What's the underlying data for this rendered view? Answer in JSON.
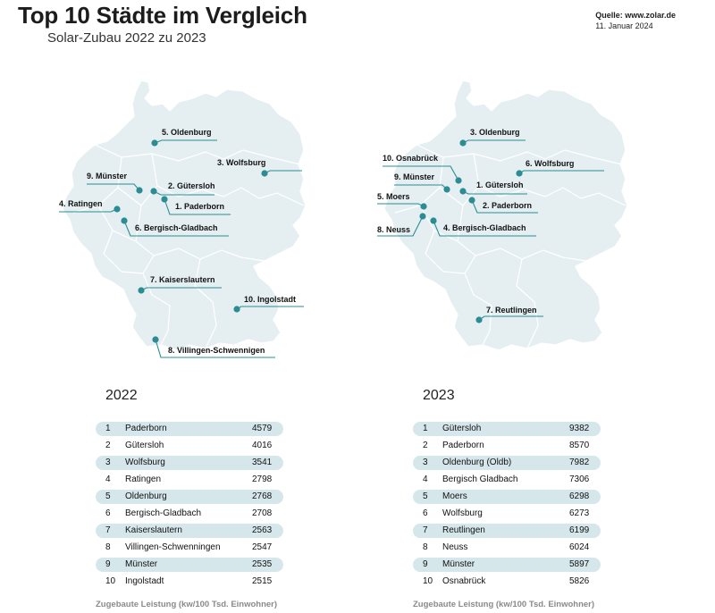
{
  "header": {
    "title": "Top 10 Städte im Vergleich",
    "subtitle": "Solar-Zubau 2022 zu 2023",
    "source": "Quelle: www.zolar.de",
    "date": "11. Januar 2024"
  },
  "map_2022": {
    "labels": [
      {
        "text": "5. Oldenburg"
      },
      {
        "text": "3. Wolfsburg"
      },
      {
        "text": "9. Münster"
      },
      {
        "text": "2. Gütersloh"
      },
      {
        "text": "1. Paderborn"
      },
      {
        "text": "4. Ratingen"
      },
      {
        "text": "6. Bergisch-Gladbach"
      },
      {
        "text": "7. Kaiserslautern"
      },
      {
        "text": "10. Ingolstadt"
      },
      {
        "text": "8. Villingen-Schwennigen"
      }
    ]
  },
  "map_2023": {
    "labels": [
      {
        "text": "3. Oldenburg"
      },
      {
        "text": "10. Osnabrück"
      },
      {
        "text": "6. Wolfsburg"
      },
      {
        "text": "9. Münster"
      },
      {
        "text": "1. Gütersloh"
      },
      {
        "text": "5. Moers"
      },
      {
        "text": "2. Paderborn"
      },
      {
        "text": "8. Neuss"
      },
      {
        "text": "4. Bergisch-Gladbach"
      },
      {
        "text": "7. Reutlingen"
      }
    ]
  },
  "table_2022": {
    "year": "2022",
    "rows": [
      {
        "rank": "1",
        "city": "Paderborn",
        "value": "4579"
      },
      {
        "rank": "2",
        "city": "Gütersloh",
        "value": "4016"
      },
      {
        "rank": "3",
        "city": "Wolfsburg",
        "value": "3541"
      },
      {
        "rank": "4",
        "city": "Ratingen",
        "value": "2798"
      },
      {
        "rank": "5",
        "city": "Oldenburg",
        "value": "2768"
      },
      {
        "rank": "6",
        "city": "Bergisch-Gladbach",
        "value": "2708"
      },
      {
        "rank": "7",
        "city": "Kaiserslautern",
        "value": "2563"
      },
      {
        "rank": "8",
        "city": "Villingen-Schwenningen",
        "value": "2547"
      },
      {
        "rank": "9",
        "city": "Münster",
        "value": "2535"
      },
      {
        "rank": "10",
        "city": "Ingolstadt",
        "value": "2515"
      }
    ],
    "footer": "Zugebaute Leistung (kw/100 Tsd. Einwohner)"
  },
  "table_2023": {
    "year": "2023",
    "rows": [
      {
        "rank": "1",
        "city": "Gütersloh",
        "value": "9382"
      },
      {
        "rank": "2",
        "city": "Paderborn",
        "value": "8570"
      },
      {
        "rank": "3",
        "city": "Oldenburg (Oldb)",
        "value": "7982"
      },
      {
        "rank": "4",
        "city": "Bergisch Gladbach",
        "value": "7306"
      },
      {
        "rank": "5",
        "city": "Moers",
        "value": "6298"
      },
      {
        "rank": "6",
        "city": "Wolfsburg",
        "value": "6273"
      },
      {
        "rank": "7",
        "city": "Reutlingen",
        "value": "6199"
      },
      {
        "rank": "8",
        "city": "Neuss",
        "value": "6024"
      },
      {
        "rank": "9",
        "city": "Münster",
        "value": "5897"
      },
      {
        "rank": "10",
        "city": "Osnabrück",
        "value": "5826"
      }
    ],
    "footer": "Zugebaute Leistung (kw/100 Tsd. Einwohner)"
  },
  "colors": {
    "accent": "#2b8c93",
    "map_fill": "#e5eff2",
    "row_shade": "#d6e7eb"
  }
}
